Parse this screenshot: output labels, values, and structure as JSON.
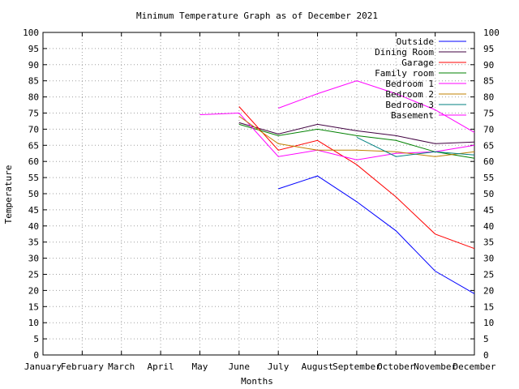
{
  "chart_data": {
    "type": "line",
    "title": "Minimum Temperature Graph as of December 2021",
    "xlabel": "Months",
    "ylabel": "Temperature",
    "categories": [
      "January",
      "February",
      "March",
      "April",
      "May",
      "June",
      "July",
      "August",
      "September",
      "October",
      "November",
      "December"
    ],
    "ylim": [
      0,
      100
    ],
    "yticks": [
      0,
      5,
      10,
      15,
      20,
      25,
      30,
      35,
      40,
      45,
      50,
      55,
      60,
      65,
      70,
      75,
      80,
      85,
      90,
      95,
      100
    ],
    "grid": true,
    "legend_position": "top-right",
    "series": [
      {
        "name": "Outside",
        "color": "#0000ff",
        "values": [
          null,
          null,
          null,
          null,
          null,
          null,
          51.5,
          55.5,
          47.5,
          38.5,
          26.0,
          19.0
        ]
      },
      {
        "name": "Dining Room",
        "color": "#400040",
        "values": [
          null,
          null,
          null,
          null,
          null,
          72.0,
          68.5,
          71.5,
          69.5,
          68.0,
          65.5,
          66.0
        ]
      },
      {
        "name": "Garage",
        "color": "#ff0000",
        "values": [
          null,
          null,
          null,
          null,
          null,
          77.0,
          63.5,
          66.5,
          59.0,
          49.0,
          37.5,
          33.0
        ]
      },
      {
        "name": "Family room",
        "color": "#008000",
        "values": [
          null,
          null,
          null,
          null,
          null,
          71.5,
          68.0,
          70.0,
          68.0,
          66.5,
          63.0,
          61.0
        ]
      },
      {
        "name": "Bedroom 1",
        "color": "#ff00ff",
        "values": [
          null,
          null,
          null,
          null,
          74.5,
          75.0,
          61.5,
          63.5,
          60.5,
          62.5,
          63.0,
          65.0
        ]
      },
      {
        "name": "Bedroom 2",
        "color": "#c08000",
        "values": [
          null,
          null,
          null,
          null,
          null,
          74.0,
          65.5,
          63.5,
          63.5,
          63.0,
          61.5,
          63.0
        ]
      },
      {
        "name": "Bedroom 3",
        "color": "#008080",
        "values": [
          null,
          null,
          null,
          null,
          null,
          null,
          null,
          null,
          67.5,
          61.5,
          63.0,
          62.0
        ]
      },
      {
        "name": "Basement",
        "color": "#ff00ff",
        "values": [
          null,
          null,
          null,
          null,
          null,
          null,
          76.5,
          81.0,
          85.0,
          81.0,
          76.0,
          69.0
        ]
      }
    ]
  }
}
